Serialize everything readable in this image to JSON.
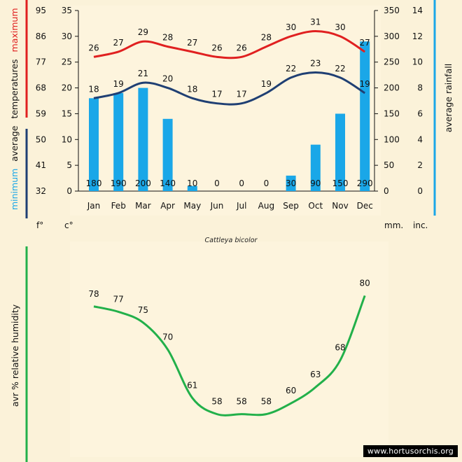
{
  "chart_data": [
    {
      "type": "line+bar",
      "title": "Cattleya bicolor",
      "categories": [
        "Jan",
        "Feb",
        "Mar",
        "Apr",
        "May",
        "Jun",
        "Jul",
        "Aug",
        "Sep",
        "Oct",
        "Nov",
        "Dec"
      ],
      "series": [
        {
          "name": "maximum",
          "kind": "line",
          "unit": "c",
          "color": "#e02020",
          "values": [
            26,
            27,
            29,
            28,
            27,
            26,
            26,
            28,
            30,
            31,
            30,
            27
          ]
        },
        {
          "name": "minimum",
          "kind": "line",
          "unit": "c",
          "color": "#1f3f73",
          "values": [
            18,
            19,
            21,
            20,
            18,
            17,
            17,
            19,
            22,
            23,
            22,
            19
          ]
        },
        {
          "name": "average rainfall",
          "kind": "bar",
          "unit": "mm.",
          "color": "#1aa7e8",
          "values": [
            180,
            190,
            200,
            140,
            10,
            0,
            0,
            0,
            30,
            90,
            150,
            290
          ]
        }
      ],
      "left_axis_f": {
        "unit": "f°",
        "ticks": [
          95,
          86,
          77,
          68,
          59,
          50,
          41,
          32
        ]
      },
      "left_axis_c": {
        "unit": "c°",
        "ticks": [
          35,
          30,
          25,
          20,
          15,
          10,
          5,
          0
        ],
        "ylim": [
          0,
          35
        ]
      },
      "right_axis_mm": {
        "unit": "mm.",
        "ticks": [
          350,
          300,
          250,
          200,
          150,
          100,
          50,
          0
        ],
        "ylim": [
          0,
          350
        ]
      },
      "right_axis_inc": {
        "unit": "inc.",
        "ticks": [
          14,
          12,
          10,
          8,
          6,
          4,
          2,
          0
        ]
      },
      "labels": {
        "left_word_max": "maximum",
        "left_word_avg": "average",
        "left_word_temp": "temperatures",
        "left_word_min": "minimum",
        "right_label": "average rainfall"
      },
      "colors": {
        "max": "#e02020",
        "min": "#1f3f73",
        "rain": "#1aa7e8",
        "left_min_text": "#1aa7e8"
      }
    },
    {
      "type": "line",
      "categories": [
        "Jan",
        "Feb",
        "Mar",
        "Apr",
        "May",
        "Jun",
        "Jul",
        "Aug",
        "Sep",
        "Oct",
        "Nov",
        "Dec"
      ],
      "series": [
        {
          "name": "avr % relative humidity",
          "color": "#22b04a",
          "values": [
            78,
            77,
            75,
            70,
            61,
            58,
            58,
            58,
            60,
            63,
            68,
            80
          ]
        }
      ],
      "ylabel": "avr % relative humidity",
      "ylim": [
        56,
        82
      ]
    }
  ],
  "watermark": "www.hortusorchis.org"
}
